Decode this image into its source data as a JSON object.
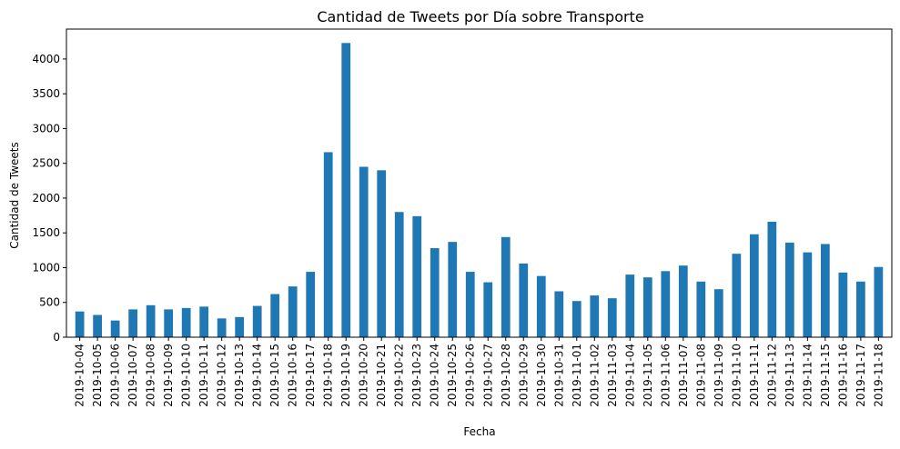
{
  "chart_data": {
    "type": "bar",
    "title": "Cantidad de Tweets por Día sobre Transporte",
    "xlabel": "Fecha",
    "ylabel": "Cantidad de Tweets",
    "ylim": [
      0,
      4430
    ],
    "yticks": [
      0,
      500,
      1000,
      1500,
      2000,
      2500,
      3000,
      3500,
      4000
    ],
    "grid": false,
    "bar_color": "#1f77b4",
    "categories": [
      "2019-10-04",
      "2019-10-05",
      "2019-10-06",
      "2019-10-07",
      "2019-10-08",
      "2019-10-09",
      "2019-10-10",
      "2019-10-11",
      "2019-10-12",
      "2019-10-13",
      "2019-10-14",
      "2019-10-15",
      "2019-10-16",
      "2019-10-17",
      "2019-10-18",
      "2019-10-19",
      "2019-10-20",
      "2019-10-21",
      "2019-10-22",
      "2019-10-23",
      "2019-10-24",
      "2019-10-25",
      "2019-10-26",
      "2019-10-27",
      "2019-10-28",
      "2019-10-29",
      "2019-10-30",
      "2019-10-31",
      "2019-11-01",
      "2019-11-02",
      "2019-11-03",
      "2019-11-04",
      "2019-11-05",
      "2019-11-06",
      "2019-11-07",
      "2019-11-08",
      "2019-11-09",
      "2019-11-10",
      "2019-11-11",
      "2019-11-12",
      "2019-11-13",
      "2019-11-14",
      "2019-11-15",
      "2019-11-16",
      "2019-11-17",
      "2019-11-18"
    ],
    "values": [
      370,
      320,
      240,
      400,
      460,
      400,
      420,
      440,
      270,
      290,
      450,
      620,
      730,
      940,
      2660,
      4230,
      2450,
      2400,
      1800,
      1740,
      1280,
      1370,
      940,
      790,
      1440,
      1060,
      880,
      660,
      520,
      600,
      560,
      900,
      860,
      950,
      1030,
      800,
      690,
      1200,
      1480,
      1660,
      1360,
      1220,
      1340,
      930,
      800,
      1010
    ]
  }
}
